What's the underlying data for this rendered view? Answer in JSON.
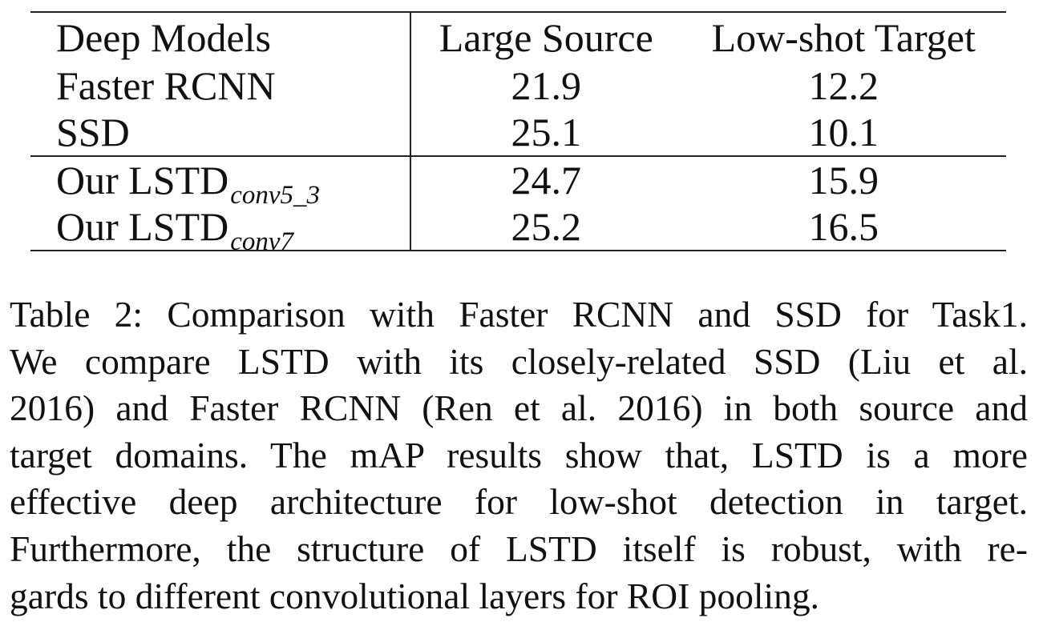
{
  "table": {
    "headers": [
      "Deep Models",
      "Large Source",
      "Low-shot Target"
    ],
    "rows": [
      {
        "model": "Faster RCNN",
        "model_sub": "",
        "source": "21.9",
        "target": "12.2"
      },
      {
        "model": "SSD",
        "model_sub": "",
        "source": "25.1",
        "target": "10.1"
      },
      {
        "model": "Our LSTD",
        "model_sub": "conv5_3",
        "source": "24.7",
        "target": "15.9"
      },
      {
        "model": "Our LSTD",
        "model_sub": "conv7",
        "source": "25.2",
        "target": "16.5"
      }
    ]
  },
  "caption": {
    "lines": [
      "Table 2: Comparison with Faster RCNN and SSD for Task1.",
      "We compare LSTD with its closely-related SSD (Liu et al.",
      "2016) and Faster RCNN (Ren et al. 2016) in both source and",
      "target domains. The mAP results show that, LSTD is a more",
      "effective deep architecture for low-shot detection in target.",
      "Furthermore, the structure of LSTD itself is robust, with re-",
      "gards to different convolutional layers for ROI pooling."
    ]
  }
}
